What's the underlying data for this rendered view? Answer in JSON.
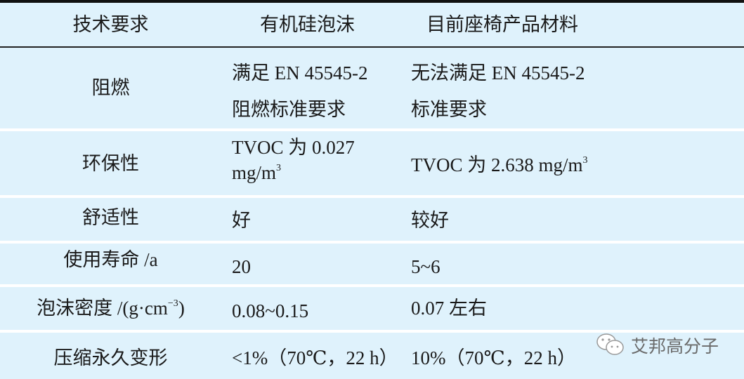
{
  "table": {
    "headers": [
      "技术要求",
      "有机硅泡沫",
      "目前座椅产品材料"
    ],
    "rows": [
      {
        "req": "阻燃",
        "silicone": [
          "满足  EN 45545-2",
          "阻燃标准要求"
        ],
        "current": [
          "无法满足 EN 45545-2",
          "标准要求"
        ]
      },
      {
        "req": "环保性",
        "silicone": [
          "TVOC  为  0.027",
          "mg/m",
          "3"
        ],
        "current": [
          "TVOC  为  2.638 mg/m",
          "3"
        ]
      },
      {
        "req": "舒适性",
        "silicone": [
          "好"
        ],
        "current": [
          "较好"
        ]
      },
      {
        "req": "使用寿命  /a",
        "silicone": [
          "20"
        ],
        "current": [
          "5~6"
        ]
      },
      {
        "req": "泡沫密度  /(g·cm",
        "req_sup": "−3",
        "req_tail": ")",
        "silicone": [
          "0.08~0.15"
        ],
        "current": [
          "0.07  左右"
        ]
      },
      {
        "req": "压缩永久变形",
        "silicone": [
          "<1%（70℃，22 h）"
        ],
        "current": [
          "10%（70℃，22 h）"
        ]
      }
    ]
  },
  "watermark": {
    "icon": "wechat-icon",
    "text": "艾邦高分子"
  },
  "colors": {
    "row_bg": "#dff2fc",
    "rule": "#111111"
  }
}
